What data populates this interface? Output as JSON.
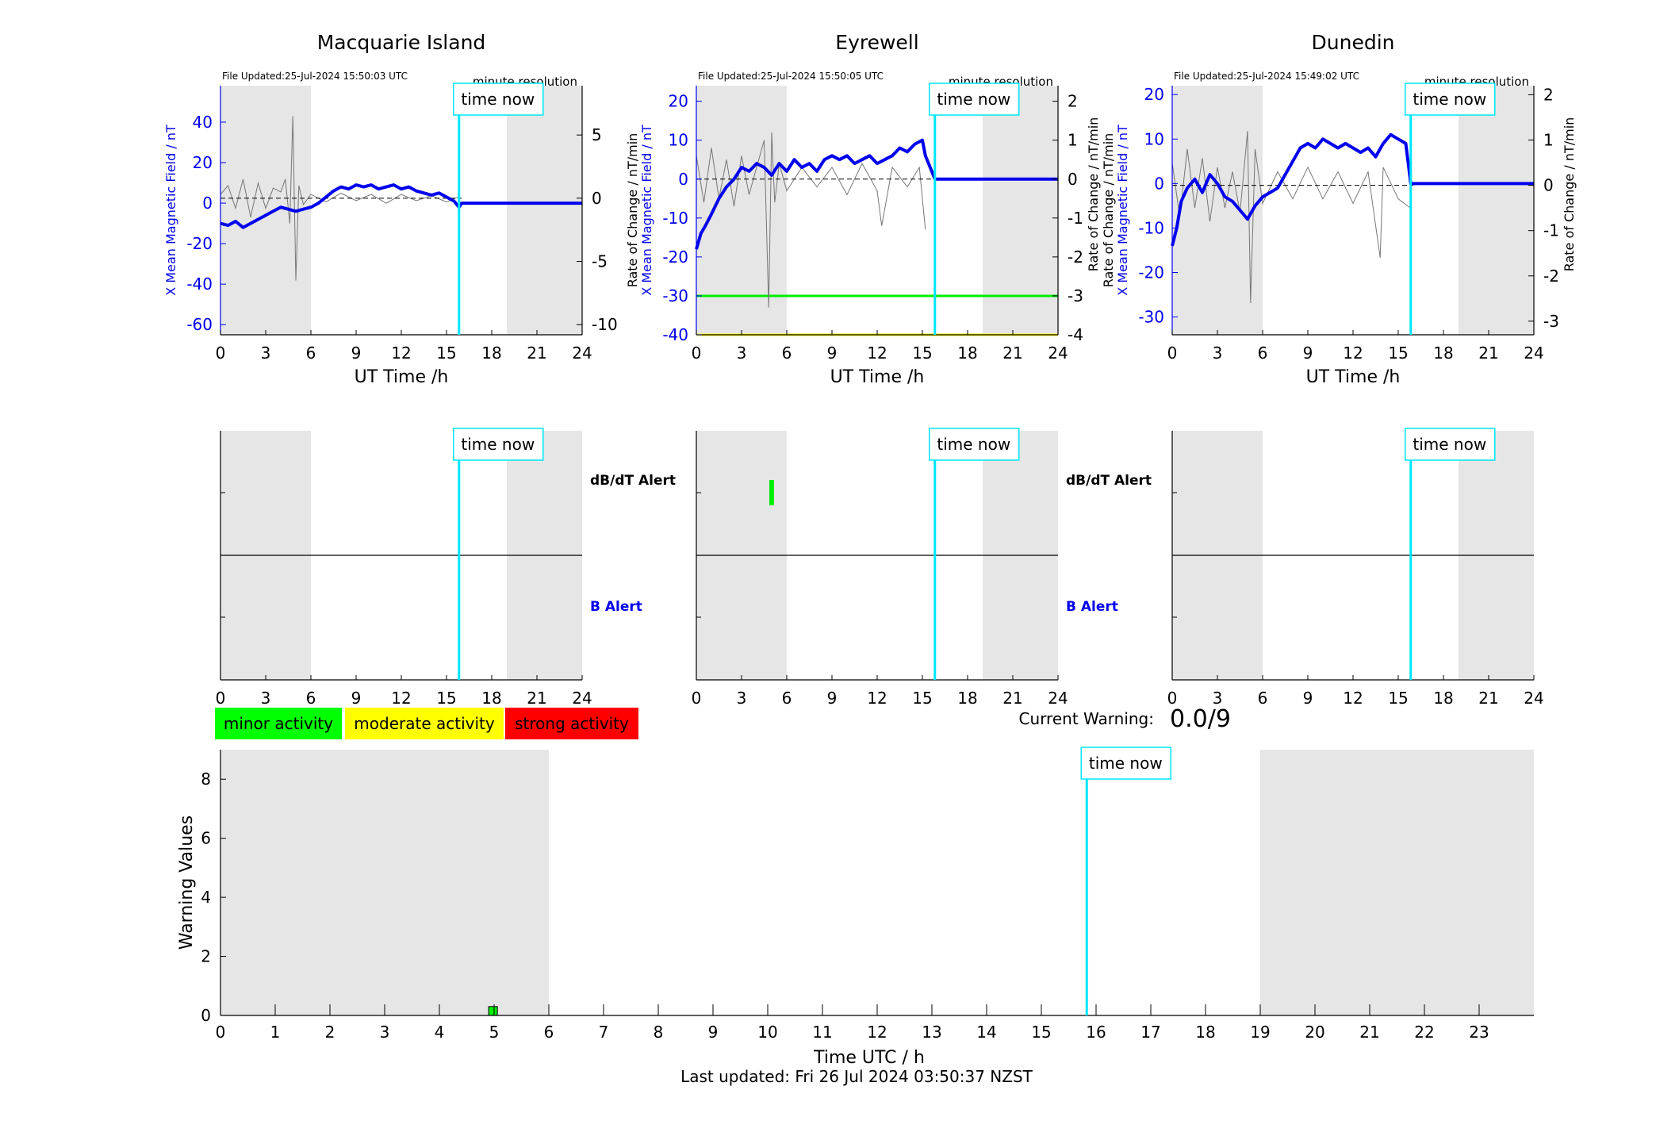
{
  "colors": {
    "field_line": "#0000ee",
    "rate_line": "#777777",
    "time_now_line": "#00e5ff",
    "night_shade": "#e6e6e6",
    "minor": "#00ff00",
    "moderate": "#ffff00",
    "strong": "#ff0000",
    "axis": "#000000",
    "alert_b": "#0000ee"
  },
  "common": {
    "time_now_label": "time now",
    "time_now_hour": 15.83,
    "night_shade_hours": [
      [
        0,
        6
      ],
      [
        19,
        24
      ]
    ],
    "resolution_label": "minute resolution",
    "x_axis_label": "UT Time /h",
    "x_ticks": [
      0,
      3,
      6,
      9,
      12,
      15,
      18,
      21,
      24
    ],
    "right_axis_label": "Rate of Change / nT/min",
    "left_axis_label": "X Mean Magnetic Field / nT"
  },
  "chart_data": [
    {
      "type": "line",
      "title": "Macquarie Island",
      "file_updated": "File Updated:25-Jul-2024 15:50:03 UTC",
      "xlabel": "UT Time /h",
      "xlim": [
        0,
        24
      ],
      "ylabel": "X Mean Magnetic Field / nT",
      "ylim": [
        -65,
        58
      ],
      "yticks": [
        -60,
        -40,
        -20,
        0,
        20,
        40
      ],
      "y2label": "",
      "y2lim": [
        -10.8,
        8.9
      ],
      "y2ticks": [
        -10,
        -5,
        0,
        5
      ],
      "field_series": {
        "name": "X Mean Magnetic Field",
        "x": [
          0,
          0.5,
          1,
          1.5,
          2,
          2.5,
          3,
          3.5,
          4,
          4.5,
          5,
          5.5,
          6,
          6.5,
          7,
          7.5,
          8,
          8.5,
          9,
          9.5,
          10,
          10.5,
          11,
          11.5,
          12,
          12.5,
          13,
          13.5,
          14,
          14.5,
          15,
          15.5,
          15.83,
          16,
          24
        ],
        "y": [
          -10,
          -11,
          -9,
          -12,
          -10,
          -8,
          -6,
          -4,
          -2,
          -3,
          -4,
          -3,
          -2,
          0,
          3,
          6,
          8,
          7,
          9,
          8,
          9,
          7,
          8,
          9,
          7,
          8,
          6,
          5,
          4,
          5,
          3,
          1,
          -2,
          0,
          0
        ]
      },
      "rate_series": {
        "name": "Rate of Change",
        "x": [
          0,
          0.5,
          1,
          1.5,
          2,
          2.5,
          3,
          3.5,
          4,
          4.3,
          4.6,
          4.8,
          5.0,
          5.2,
          5.5,
          6,
          7,
          8,
          9,
          10,
          11,
          12,
          13,
          14,
          15,
          15.8
        ],
        "y": [
          0.3,
          1.0,
          -0.8,
          1.5,
          -1.5,
          1.2,
          -0.8,
          0.8,
          0.5,
          1.5,
          -2.0,
          6.5,
          -6.5,
          1.0,
          -0.5,
          0.3,
          -0.3,
          0.4,
          -0.2,
          0.3,
          -0.4,
          0.3,
          -0.2,
          0.2,
          -0.3,
          0.1
        ]
      },
      "alerts": []
    },
    {
      "type": "line",
      "title": "Eyrewell",
      "file_updated": "File Updated:25-Jul-2024 15:50:05 UTC",
      "xlabel": "UT Time /h",
      "xlim": [
        0,
        24
      ],
      "ylabel": "X Mean Magnetic Field / nT",
      "ylim": [
        -40,
        24
      ],
      "yticks": [
        -40,
        -30,
        -20,
        -10,
        0,
        10,
        20
      ],
      "y2label": "Rate of Change / nT/min",
      "y2lim": [
        -4,
        2.4
      ],
      "y2ticks": [
        -4,
        -3,
        -2,
        -1,
        0,
        1,
        2
      ],
      "threshold_lines": [
        {
          "y": -30,
          "color": "#00ee00"
        },
        {
          "y": -40,
          "color": "#ffff00"
        }
      ],
      "field_series": {
        "name": "X Mean Magnetic Field",
        "x": [
          0,
          0.3,
          0.6,
          1,
          1.5,
          2,
          2.5,
          3,
          3.5,
          4,
          4.5,
          5,
          5.5,
          6,
          6.5,
          7,
          7.5,
          8,
          8.5,
          9,
          9.5,
          10,
          10.5,
          11,
          11.5,
          12,
          12.5,
          13,
          13.5,
          14,
          14.5,
          15,
          15.2,
          15.83,
          16,
          24
        ],
        "y": [
          -18,
          -14,
          -12,
          -9,
          -5,
          -2,
          0,
          3,
          2,
          4,
          3,
          1,
          4,
          2,
          5,
          3,
          4,
          2,
          5,
          6,
          5,
          6,
          4,
          5,
          6,
          4,
          5,
          6,
          8,
          7,
          9,
          10,
          6,
          0,
          0,
          0
        ]
      },
      "rate_series": {
        "name": "Rate of Change",
        "x": [
          0,
          0.5,
          1,
          1.5,
          2,
          2.5,
          3,
          3.5,
          4,
          4.5,
          4.8,
          5.0,
          5.2,
          5.5,
          6,
          7,
          8,
          9,
          10,
          11,
          12,
          12.3,
          13,
          14,
          14.8,
          15.2
        ],
        "y": [
          0.6,
          -0.6,
          0.8,
          -0.5,
          0.5,
          -0.7,
          0.6,
          -0.4,
          0.3,
          1.0,
          -3.3,
          1.2,
          -0.6,
          0.4,
          -0.3,
          0.3,
          -0.2,
          0.3,
          -0.4,
          0.4,
          -0.3,
          -1.2,
          0.3,
          -0.2,
          0.3,
          -1.3
        ]
      },
      "alerts": [
        {
          "type": "dBdT",
          "hour": 5.0,
          "color": "#00ee00"
        }
      ]
    },
    {
      "type": "line",
      "title": "Dunedin",
      "file_updated": "File Updated:25-Jul-2024 15:49:02 UTC",
      "xlabel": "UT Time /h",
      "xlim": [
        0,
        24
      ],
      "ylabel": "X Mean Magnetic Field / nT",
      "ylim": [
        -34,
        22
      ],
      "yticks": [
        -30,
        -20,
        -10,
        0,
        10,
        20
      ],
      "y2label": "Rate of Change / nT/min",
      "y2lim": [
        -3.3,
        2.2
      ],
      "y2ticks": [
        -3,
        -2,
        -1,
        0,
        1,
        2
      ],
      "field_series": {
        "name": "X Mean Magnetic Field",
        "x": [
          0,
          0.3,
          0.6,
          1,
          1.5,
          2,
          2.5,
          3,
          3.5,
          4,
          4.5,
          5,
          5.5,
          6,
          6.5,
          7,
          7.5,
          8,
          8.5,
          9,
          9.5,
          10,
          10.5,
          11,
          11.5,
          12,
          12.5,
          13,
          13.5,
          14,
          14.5,
          15,
          15.5,
          15.83,
          16,
          24
        ],
        "y": [
          -14,
          -10,
          -4,
          -1,
          1,
          -2,
          2,
          0,
          -3,
          -4,
          -6,
          -8,
          -5,
          -3,
          -2,
          -1,
          2,
          5,
          8,
          9,
          8,
          10,
          9,
          8,
          9,
          8,
          7,
          8,
          6,
          9,
          11,
          10,
          9,
          0,
          0,
          0
        ]
      },
      "rate_series": {
        "name": "Rate of Change",
        "x": [
          0,
          0.5,
          1,
          1.5,
          2,
          2.5,
          3,
          3.5,
          4,
          4.5,
          5,
          5.2,
          5.5,
          6,
          7,
          8,
          9,
          10,
          11,
          12,
          13,
          13.8,
          14,
          15,
          15.8
        ],
        "y": [
          0.5,
          -0.7,
          0.8,
          -0.5,
          0.6,
          -0.8,
          0.4,
          -0.5,
          0.3,
          -0.6,
          1.2,
          -2.6,
          0.8,
          -0.4,
          0.3,
          -0.3,
          0.4,
          -0.3,
          0.3,
          -0.4,
          0.3,
          -1.6,
          0.4,
          -0.3,
          -0.5
        ]
      },
      "alerts": []
    },
    {
      "type": "bar",
      "title": "",
      "xlabel": "Time UTC / h",
      "ylabel": "Warning Values",
      "xlim": [
        0,
        24
      ],
      "ylim": [
        0,
        9
      ],
      "xticks": [
        0,
        1,
        2,
        3,
        4,
        5,
        6,
        7,
        8,
        9,
        10,
        11,
        12,
        13,
        14,
        15,
        16,
        17,
        18,
        19,
        20,
        21,
        22,
        23
      ],
      "yticks": [
        0,
        2,
        4,
        6,
        8
      ],
      "bars": [
        {
          "x": 4.9,
          "value": 0.3,
          "color": "#00ee00"
        }
      ],
      "night_shade_hours": [
        [
          0,
          6
        ],
        [
          19,
          24
        ]
      ]
    }
  ],
  "alert_panel": {
    "dbdt_label": "dB/dT Alert",
    "b_label": "B Alert",
    "x_ticks": [
      0,
      3,
      6,
      9,
      12,
      15,
      18,
      21,
      24
    ]
  },
  "legend": {
    "items": [
      {
        "label": "minor activity",
        "color": "#00ff00"
      },
      {
        "label": "moderate activity",
        "color": "#ffff00"
      },
      {
        "label": "strong activity",
        "color": "#ff0000"
      }
    ]
  },
  "current_warning": {
    "label": "Current Warning:",
    "value": "0.0/9"
  },
  "footer": {
    "last_updated": "Last updated: Fri 26 Jul 2024 03:50:37 NZST"
  }
}
